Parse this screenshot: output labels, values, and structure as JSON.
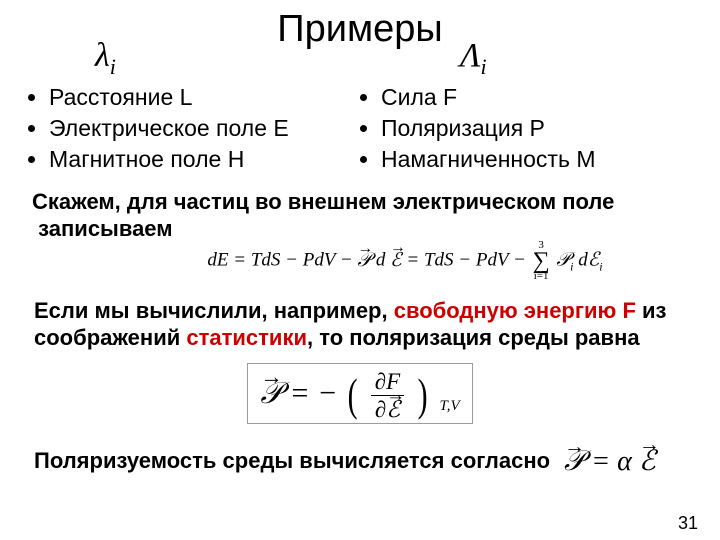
{
  "title": "Примеры",
  "symbol_left": "λ",
  "symbol_left_sub": "i",
  "symbol_right": "Λ",
  "symbol_right_sub": "i",
  "left_bullets": [
    "Расстояние L",
    "Электрическое поле E",
    "Магнитное поле H"
  ],
  "right_bullets": [
    "Сила F",
    "Поляризация P",
    "Намагниченность M"
  ],
  "para1_a": "Скажем, для частиц во внешнем электрическом поле",
  "para1_b": "записываем",
  "para2_a": "Если мы вычислили, например, ",
  "para2_red1": "свободную энергию F",
  "para2_b": " из соображений ",
  "para2_red2": "статистики",
  "para2_c": ", то поляризация среды равна",
  "para3": "Поляризуемость среды вычисляется согласно",
  "pagenum": "31",
  "formula1": {
    "lhs": "dE = TdS − PdV − ",
    "vecP": "𝒫",
    "d": "d",
    "vecE": "ℰ",
    "mid": " = TdS − PdV − ",
    "sum_top": "3",
    "sum_bot": "i=1",
    "Pi": "𝒫",
    "Pi_sub": "i",
    "dEi": "dℰ",
    "dEi_sub": "i"
  },
  "formula2": {
    "vecP": "𝒫",
    "eq": " = −",
    "partF": "∂F",
    "partE": "∂ℰ",
    "sub": "T,V"
  },
  "formula3": {
    "vecP": "𝒫",
    "eq": " = α",
    "vecE": "ℰ"
  }
}
